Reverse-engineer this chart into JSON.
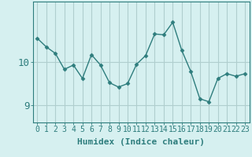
{
  "x": [
    0,
    1,
    2,
    3,
    4,
    5,
    6,
    7,
    8,
    9,
    10,
    11,
    12,
    13,
    14,
    15,
    16,
    17,
    18,
    19,
    20,
    21,
    22,
    23
  ],
  "y": [
    10.55,
    10.35,
    10.2,
    9.83,
    9.93,
    9.62,
    10.17,
    9.93,
    9.52,
    9.42,
    9.5,
    9.95,
    10.15,
    10.65,
    10.63,
    10.92,
    10.27,
    9.78,
    9.15,
    9.08,
    9.62,
    9.73,
    9.67,
    9.73
  ],
  "line_color": "#2e7d7d",
  "marker": "D",
  "marker_size": 2.5,
  "line_width": 1.0,
  "bg_color": "#d6f0f0",
  "grid_color": "#b0cece",
  "xlabel": "Humidex (Indice chaleur)",
  "yticks": [
    9,
    10
  ],
  "ylim": [
    8.6,
    11.4
  ],
  "xlim": [
    -0.5,
    23.5
  ],
  "xticks": [
    0,
    1,
    2,
    3,
    4,
    5,
    6,
    7,
    8,
    9,
    10,
    11,
    12,
    13,
    14,
    15,
    16,
    17,
    18,
    19,
    20,
    21,
    22,
    23
  ],
  "xtick_labels": [
    "0",
    "1",
    "2",
    "3",
    "4",
    "5",
    "6",
    "7",
    "8",
    "9",
    "10",
    "11",
    "12",
    "13",
    "14",
    "15",
    "16",
    "17",
    "18",
    "19",
    "20",
    "21",
    "22",
    "23"
  ],
  "font_color": "#2e7d7d",
  "tick_fontsize": 7,
  "xlabel_fontsize": 8,
  "ylabel_fontsize": 9
}
